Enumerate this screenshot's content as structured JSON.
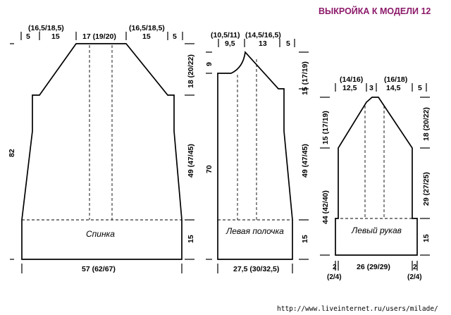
{
  "title": "ВЫКРОЙКА К МОДЕЛИ 12",
  "watermark_url": "http://www.liveinternet.ru/users/milade/",
  "colors": {
    "title": "#8c1a6a",
    "line": "#000000"
  },
  "back": {
    "label": "Спинка",
    "top_left_group": "(16,5/18,5)",
    "top_right_group": "(16,5/18,5)",
    "top_margin_left": "5",
    "top_left_width": "15",
    "top_center": "17 (19/20)",
    "top_right_width": "15",
    "top_margin_right": "5",
    "height_total": "82",
    "right_upper": "18 (20/22)",
    "right_middle": "49 (47/45)",
    "right_lower": "15",
    "bottom_width": "57 (62/67)"
  },
  "front": {
    "label": "Левая полочка",
    "top_left_group": "(10,5/11)",
    "top_right_group": "(14,5/16,5)",
    "top_left_width": "9,5",
    "top_right_width": "13",
    "top_margin_right": "5",
    "neck_depth": "9",
    "height_total": "70",
    "right_upper": "15 (17/19)",
    "right_middle": "49 (47/45)",
    "right_lower": "15",
    "bottom_width": "27,5 (30/32,5)"
  },
  "sleeve": {
    "label": "Левый рукав",
    "top_left_group": "(14/16)",
    "top_right_group": "(16/18)",
    "top_left_width": "12,5",
    "top_center": "3",
    "top_right_width": "14,5",
    "top_margin_right": "5",
    "left_upper": "15 (17/19)",
    "left_lower": "44 (42/40)",
    "right_upper": "18 (20/22)",
    "right_middle": "29 (27/25)",
    "right_lower": "15",
    "bottom_left_side": "2",
    "bottom_left_side_sub": "(2/4)",
    "bottom_width": "26 (29/29)",
    "bottom_right_side": "2",
    "bottom_right_side_sub": "(2/4)"
  }
}
